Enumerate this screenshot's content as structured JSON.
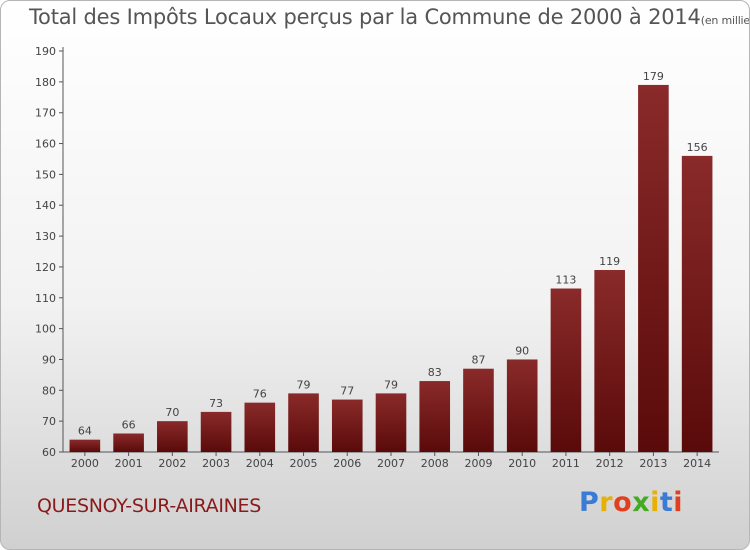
{
  "title": "Total des Impôts Locaux perçus par la Commune de 2000 à 2014",
  "title_unit": "(en milliers d'€)",
  "commune": "QUESNOY-SUR-AIRAINES",
  "logo": {
    "text": "Proxiti",
    "colors": [
      "#3a7bd5",
      "#e8b000",
      "#e04020",
      "#44aa22",
      "#e8b000",
      "#3a7bd5",
      "#e04020"
    ]
  },
  "colors": {
    "bar": "#7a1a1a",
    "bar_dark": "#5a0a0a",
    "axis": "#555555",
    "text": "#444444",
    "commune": "#8a1a1a"
  },
  "chart_data": {
    "type": "bar",
    "categories": [
      "2000",
      "2001",
      "2002",
      "2003",
      "2004",
      "2005",
      "2006",
      "2007",
      "2008",
      "2009",
      "2010",
      "2011",
      "2012",
      "2013",
      "2014"
    ],
    "values": [
      64,
      66,
      70,
      73,
      76,
      79,
      77,
      79,
      83,
      87,
      90,
      113,
      119,
      179,
      156
    ],
    "yticks": [
      60,
      70,
      80,
      90,
      100,
      110,
      120,
      130,
      140,
      150,
      160,
      170,
      180,
      190
    ],
    "ylim": [
      60,
      190
    ],
    "grid": false
  }
}
